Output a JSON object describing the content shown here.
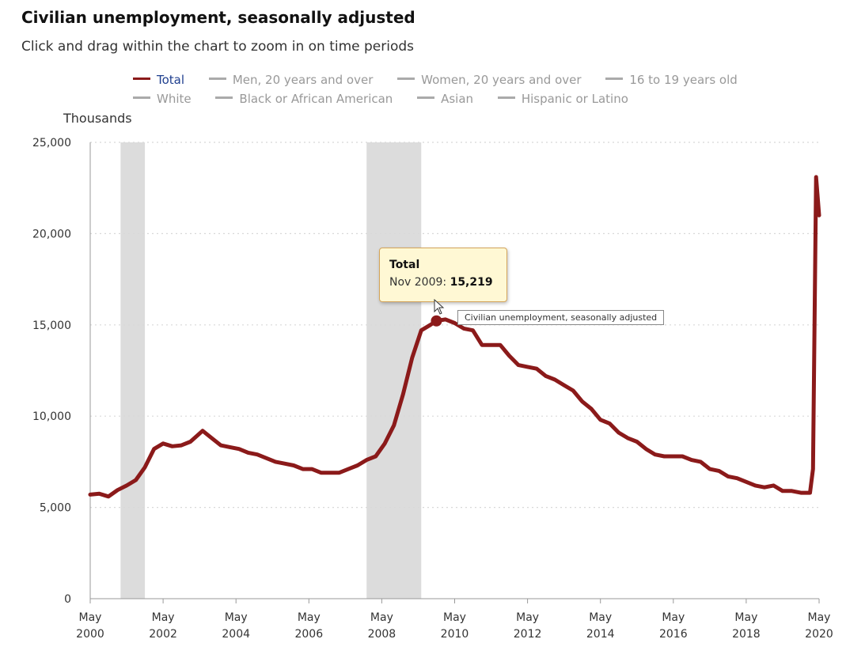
{
  "header": {
    "title": "Civilian unemployment, seasonally adjusted",
    "subtitle": "Click and drag within the chart to zoom in on time periods"
  },
  "legend": {
    "items": [
      {
        "label": "Total",
        "active": true
      },
      {
        "label": "Men, 20 years and over",
        "active": false
      },
      {
        "label": "Women, 20 years and over",
        "active": false
      },
      {
        "label": "16 to 19 years old",
        "active": false
      },
      {
        "label": "White",
        "active": false
      },
      {
        "label": "Black or African American",
        "active": false
      },
      {
        "label": "Asian",
        "active": false
      },
      {
        "label": "Hispanic or Latino",
        "active": false
      }
    ]
  },
  "tooltip": {
    "series": "Total",
    "date": "Nov 2009",
    "value": "15,219"
  },
  "hover_label": "Civilian unemployment, seasonally adjusted",
  "colors": {
    "series_line": "#8b1a1a",
    "recession_band": "#dcdcdc",
    "gridline": "#d8d8d8",
    "tooltip_bg": "#fff8d4"
  },
  "icons": {
    "cursor": "mouse-pointer-icon"
  },
  "chart_data": {
    "type": "line",
    "title": "Civilian unemployment, seasonally adjusted",
    "ylabel": "Thousands",
    "xlabel": "",
    "ylim": [
      0,
      25000
    ],
    "xlim": [
      "2000-05",
      "2020-05"
    ],
    "y_ticks": [
      0,
      5000,
      10000,
      15000,
      20000,
      25000
    ],
    "y_tick_labels": [
      "0",
      "5,000",
      "10,000",
      "15,000",
      "20,000",
      "25,000"
    ],
    "x_ticks": [
      "2000-05",
      "2002-05",
      "2004-05",
      "2006-05",
      "2008-05",
      "2010-05",
      "2012-05",
      "2014-05",
      "2016-05",
      "2018-05",
      "2020-05"
    ],
    "x_tick_labels": [
      [
        "May",
        "2000"
      ],
      [
        "May",
        "2002"
      ],
      [
        "May",
        "2004"
      ],
      [
        "May",
        "2006"
      ],
      [
        "May",
        "2008"
      ],
      [
        "May",
        "2010"
      ],
      [
        "May",
        "2012"
      ],
      [
        "May",
        "2014"
      ],
      [
        "May",
        "2016"
      ],
      [
        "May",
        "2018"
      ],
      [
        "May",
        "2020"
      ]
    ],
    "grid": true,
    "legend_position": "top",
    "recession_shading": [
      {
        "start": "2001-03",
        "end": "2001-11"
      },
      {
        "start": "2007-12",
        "end": "2009-06"
      }
    ],
    "highlight": {
      "x": "2009-11",
      "y": 15219
    },
    "series": [
      {
        "name": "Total",
        "color": "#8b1a1a",
        "points": [
          [
            "2000-05",
            5700
          ],
          [
            "2000-08",
            5750
          ],
          [
            "2000-11",
            5600
          ],
          [
            "2001-02",
            5950
          ],
          [
            "2001-05",
            6200
          ],
          [
            "2001-08",
            6500
          ],
          [
            "2001-11",
            7200
          ],
          [
            "2002-02",
            8200
          ],
          [
            "2002-05",
            8500
          ],
          [
            "2002-08",
            8350
          ],
          [
            "2002-11",
            8400
          ],
          [
            "2003-02",
            8600
          ],
          [
            "2003-06",
            9200
          ],
          [
            "2003-09",
            8800
          ],
          [
            "2003-12",
            8400
          ],
          [
            "2004-03",
            8300
          ],
          [
            "2004-06",
            8200
          ],
          [
            "2004-09",
            8000
          ],
          [
            "2004-12",
            7900
          ],
          [
            "2005-03",
            7700
          ],
          [
            "2005-06",
            7500
          ],
          [
            "2005-09",
            7400
          ],
          [
            "2005-12",
            7300
          ],
          [
            "2006-03",
            7100
          ],
          [
            "2006-06",
            7100
          ],
          [
            "2006-09",
            6900
          ],
          [
            "2006-12",
            6900
          ],
          [
            "2007-03",
            6900
          ],
          [
            "2007-06",
            7100
          ],
          [
            "2007-09",
            7300
          ],
          [
            "2007-12",
            7600
          ],
          [
            "2008-03",
            7800
          ],
          [
            "2008-06",
            8500
          ],
          [
            "2008-09",
            9500
          ],
          [
            "2008-12",
            11200
          ],
          [
            "2009-03",
            13200
          ],
          [
            "2009-06",
            14700
          ],
          [
            "2009-09",
            15000
          ],
          [
            "2009-11",
            15219
          ],
          [
            "2010-02",
            15300
          ],
          [
            "2010-05",
            15100
          ],
          [
            "2010-08",
            14800
          ],
          [
            "2010-11",
            14700
          ],
          [
            "2011-02",
            13900
          ],
          [
            "2011-05",
            13900
          ],
          [
            "2011-08",
            13900
          ],
          [
            "2011-11",
            13300
          ],
          [
            "2012-02",
            12800
          ],
          [
            "2012-05",
            12700
          ],
          [
            "2012-08",
            12600
          ],
          [
            "2012-11",
            12200
          ],
          [
            "2013-02",
            12000
          ],
          [
            "2013-05",
            11700
          ],
          [
            "2013-08",
            11400
          ],
          [
            "2013-11",
            10800
          ],
          [
            "2014-02",
            10400
          ],
          [
            "2014-05",
            9800
          ],
          [
            "2014-08",
            9600
          ],
          [
            "2014-11",
            9100
          ],
          [
            "2015-02",
            8800
          ],
          [
            "2015-05",
            8600
          ],
          [
            "2015-08",
            8200
          ],
          [
            "2015-11",
            7900
          ],
          [
            "2016-02",
            7800
          ],
          [
            "2016-05",
            7800
          ],
          [
            "2016-08",
            7800
          ],
          [
            "2016-11",
            7600
          ],
          [
            "2017-02",
            7500
          ],
          [
            "2017-05",
            7100
          ],
          [
            "2017-08",
            7000
          ],
          [
            "2017-11",
            6700
          ],
          [
            "2018-02",
            6600
          ],
          [
            "2018-05",
            6400
          ],
          [
            "2018-08",
            6200
          ],
          [
            "2018-11",
            6100
          ],
          [
            "2019-02",
            6200
          ],
          [
            "2019-05",
            5900
          ],
          [
            "2019-08",
            5900
          ],
          [
            "2019-11",
            5800
          ],
          [
            "2020-01",
            5800
          ],
          [
            "2020-02",
            5800
          ],
          [
            "2020-03",
            7100
          ],
          [
            "2020-04",
            23100
          ],
          [
            "2020-05",
            21000
          ]
        ]
      }
    ]
  }
}
